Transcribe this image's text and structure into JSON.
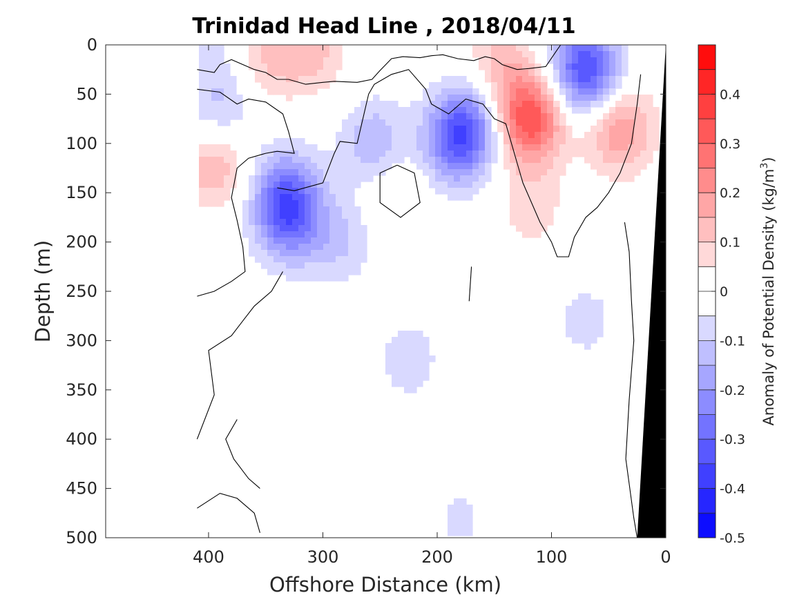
{
  "chart_data": {
    "type": "heatmap",
    "title": "Trinidad Head Line , 2018/04/11",
    "xlabel": "Offshore Distance (km)",
    "ylabel": "Depth (m)",
    "colorbar_label_prefix": "Anomaly of Potential Density (kg/m",
    "colorbar_label_exponent": "3",
    "colorbar_label_suffix": ")",
    "xlim": [
      490,
      0
    ],
    "ylim": [
      0,
      500
    ],
    "x_reversed": true,
    "y_reversed": true,
    "xticks": [
      400,
      300,
      200,
      100,
      0
    ],
    "yticks": [
      0,
      50,
      100,
      150,
      200,
      250,
      300,
      350,
      400,
      450,
      500
    ],
    "clim": [
      -0.5,
      0.5
    ],
    "color_levels": 20,
    "colorbar_ticks": [
      {
        "value": 0.4,
        "label": "0.4"
      },
      {
        "value": 0.3,
        "label": "0.3"
      },
      {
        "value": 0.2,
        "label": "0.2"
      },
      {
        "value": 0.1,
        "label": "0.1"
      },
      {
        "value": 0.0,
        "label": "0"
      },
      {
        "value": -0.1,
        "label": "-0.1"
      },
      {
        "value": -0.2,
        "label": "-0.2"
      },
      {
        "value": -0.3,
        "label": "-0.3"
      },
      {
        "value": -0.4,
        "label": "-0.4"
      },
      {
        "value": -0.5,
        "label": "-0.5"
      }
    ],
    "colormap": {
      "negative": "#0000ff",
      "zero": "#ffffff",
      "positive": "#ff0000"
    },
    "data_extent_km": [
      410,
      0
    ],
    "bottom_mask_color": "#000000",
    "bottom_mask": [
      {
        "x": 0,
        "depth": 0
      },
      {
        "x": 25,
        "depth": 500
      },
      {
        "x": 0,
        "depth": 500
      }
    ],
    "anomaly_features": [
      {
        "x": 310,
        "depth": 5,
        "value": 0.12
      },
      {
        "x": 350,
        "depth": 15,
        "value": 0.1
      },
      {
        "x": 395,
        "depth": 10,
        "value": -0.06
      },
      {
        "x": 390,
        "depth": 70,
        "value": -0.12
      },
      {
        "x": 395,
        "depth": 120,
        "value": 0.16
      },
      {
        "x": 332,
        "depth": 150,
        "value": -0.22
      },
      {
        "x": 330,
        "depth": 180,
        "value": -0.2
      },
      {
        "x": 285,
        "depth": 200,
        "value": -0.1
      },
      {
        "x": 235,
        "depth": 145,
        "value": 0.06
      },
      {
        "x": 255,
        "depth": 100,
        "value": -0.15
      },
      {
        "x": 185,
        "depth": 100,
        "value": -0.22
      },
      {
        "x": 170,
        "depth": 80,
        "value": -0.2
      },
      {
        "x": 225,
        "depth": 320,
        "value": -0.08
      },
      {
        "x": 180,
        "depth": 480,
        "value": -0.06
      },
      {
        "x": 120,
        "depth": 75,
        "value": 0.35
      },
      {
        "x": 145,
        "depth": 20,
        "value": 0.12
      },
      {
        "x": 118,
        "depth": 165,
        "value": 0.08
      },
      {
        "x": 70,
        "depth": 25,
        "value": -0.36
      },
      {
        "x": 40,
        "depth": 85,
        "value": 0.2
      },
      {
        "x": 70,
        "depth": 280,
        "value": -0.07
      }
    ],
    "zero_contours": [
      [
        [
          410,
          25
        ],
        [
          395,
          28
        ],
        [
          390,
          20
        ],
        [
          380,
          15
        ],
        [
          360,
          25
        ],
        [
          350,
          28
        ],
        [
          340,
          35
        ],
        [
          330,
          35
        ],
        [
          315,
          40
        ],
        [
          300,
          38
        ],
        [
          290,
          37
        ],
        [
          270,
          38
        ],
        [
          257,
          35
        ],
        [
          250,
          26
        ],
        [
          245,
          20
        ],
        [
          240,
          14
        ],
        [
          230,
          12
        ],
        [
          215,
          13
        ],
        [
          205,
          11
        ],
        [
          195,
          10
        ],
        [
          182,
          14
        ],
        [
          168,
          16
        ],
        [
          158,
          12
        ],
        [
          150,
          14
        ],
        [
          143,
          20
        ],
        [
          130,
          25
        ],
        [
          120,
          24
        ],
        [
          105,
          22
        ],
        [
          95,
          5
        ],
        [
          92,
          0
        ]
      ],
      [
        [
          410,
          45
        ],
        [
          390,
          48
        ],
        [
          375,
          60
        ],
        [
          365,
          55
        ],
        [
          350,
          58
        ],
        [
          335,
          70
        ],
        [
          330,
          88
        ],
        [
          325,
          110
        ],
        [
          340,
          108
        ],
        [
          350,
          110
        ],
        [
          365,
          115
        ],
        [
          375,
          125
        ],
        [
          380,
          155
        ],
        [
          375,
          178
        ],
        [
          370,
          205
        ],
        [
          368,
          230
        ],
        [
          380,
          240
        ],
        [
          395,
          250
        ],
        [
          410,
          255
        ]
      ],
      [
        [
          340,
          145
        ],
        [
          325,
          148
        ],
        [
          300,
          140
        ],
        [
          290,
          110
        ],
        [
          285,
          98
        ],
        [
          270,
          100
        ],
        [
          260,
          50
        ],
        [
          255,
          40
        ],
        [
          240,
          30
        ],
        [
          225,
          25
        ],
        [
          210,
          45
        ],
        [
          205,
          60
        ],
        [
          190,
          70
        ],
        [
          175,
          55
        ],
        [
          160,
          60
        ],
        [
          150,
          75
        ],
        [
          140,
          80
        ],
        [
          130,
          120
        ],
        [
          125,
          140
        ],
        [
          110,
          180
        ],
        [
          100,
          200
        ],
        [
          95,
          215
        ],
        [
          85,
          215
        ],
        [
          80,
          195
        ],
        [
          70,
          175
        ],
        [
          60,
          165
        ],
        [
          50,
          150
        ],
        [
          40,
          130
        ],
        [
          30,
          100
        ],
        [
          25,
          60
        ],
        [
          22,
          30
        ]
      ],
      [
        [
          235,
          122
        ],
        [
          250,
          130
        ],
        [
          250,
          160
        ],
        [
          232,
          175
        ],
        [
          215,
          160
        ],
        [
          220,
          130
        ],
        [
          235,
          122
        ]
      ],
      [
        [
          410,
          400
        ],
        [
          395,
          355
        ],
        [
          400,
          310
        ],
        [
          380,
          295
        ],
        [
          370,
          280
        ],
        [
          360,
          265
        ],
        [
          345,
          250
        ],
        [
          340,
          240
        ],
        [
          335,
          230
        ]
      ],
      [
        [
          375,
          380
        ],
        [
          385,
          400
        ],
        [
          378,
          420
        ],
        [
          365,
          440
        ],
        [
          355,
          450
        ]
      ],
      [
        [
          410,
          470
        ],
        [
          390,
          455
        ],
        [
          375,
          460
        ],
        [
          360,
          475
        ],
        [
          355,
          495
        ]
      ],
      [
        [
          36,
          180
        ],
        [
          32,
          210
        ],
        [
          30,
          260
        ],
        [
          28,
          300
        ],
        [
          32,
          360
        ],
        [
          35,
          420
        ],
        [
          28,
          480
        ],
        [
          25,
          500
        ]
      ],
      [
        [
          170,
          225
        ],
        [
          172,
          260
        ]
      ]
    ]
  }
}
